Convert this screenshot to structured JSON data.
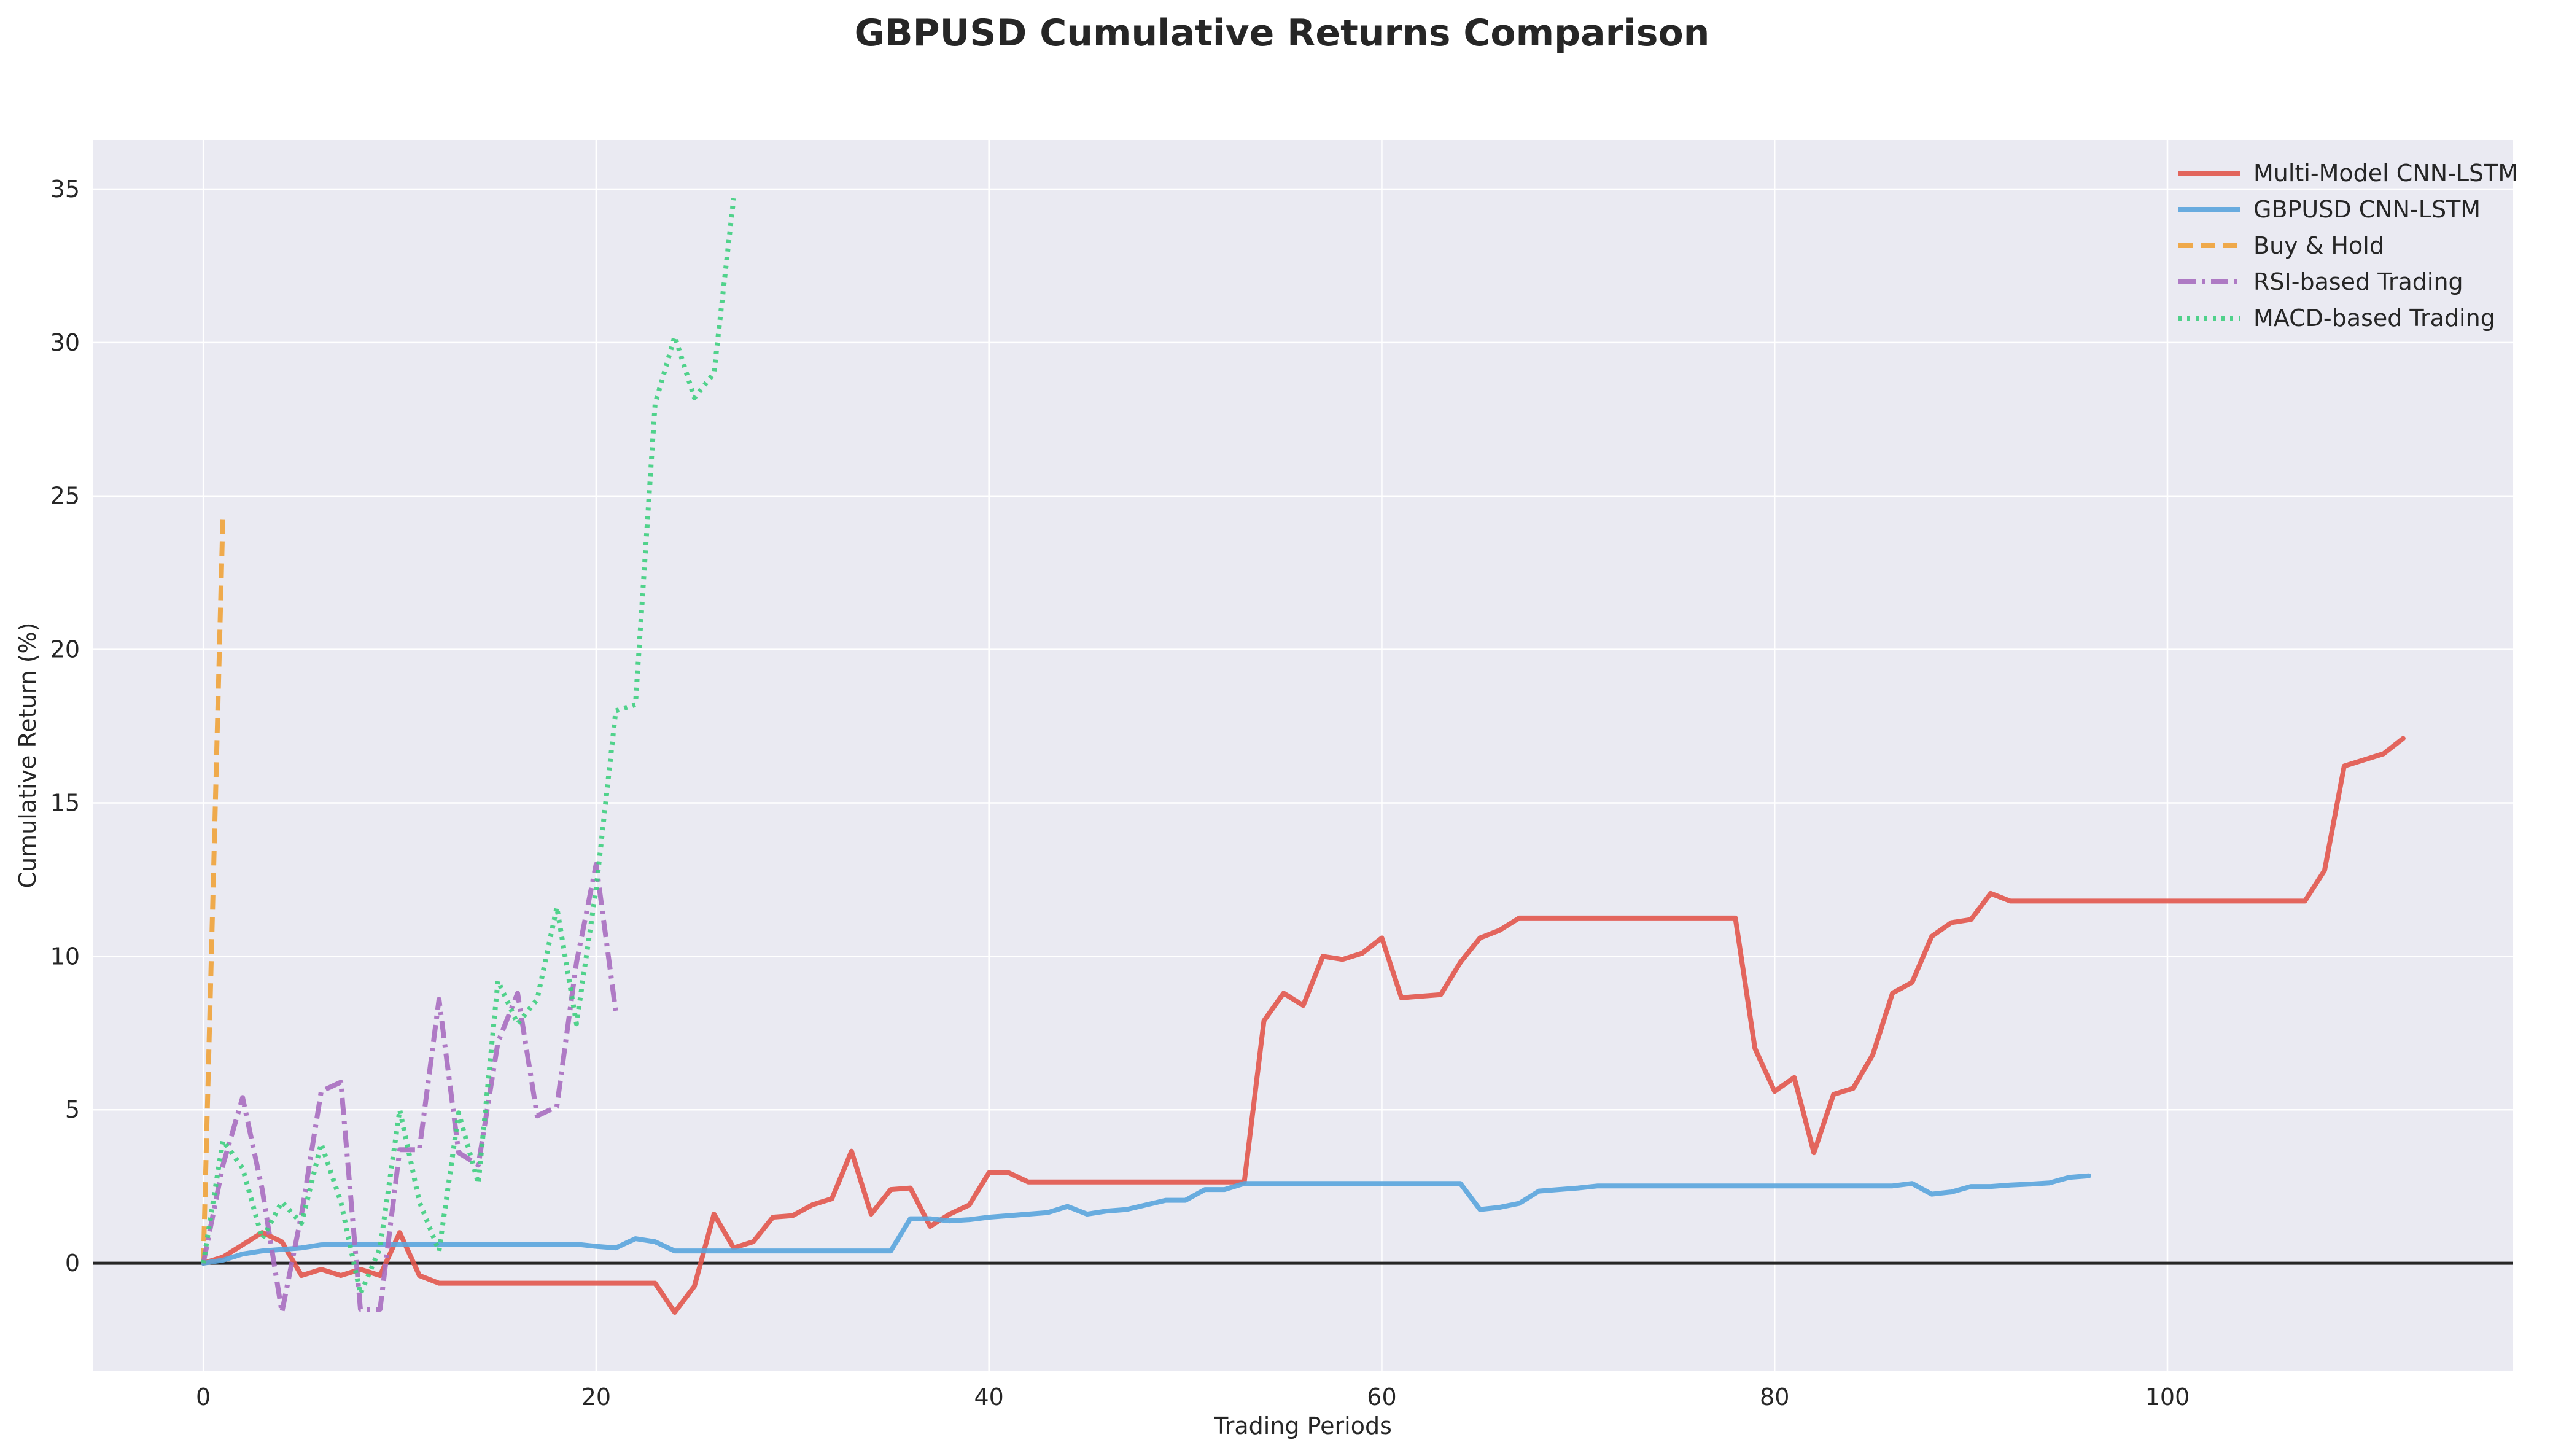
{
  "chart_data": {
    "type": "line",
    "title": "GBPUSD Cumulative Returns Comparison",
    "xlabel": "Trading Periods",
    "ylabel": "Cumulative Return (%)",
    "xlim": [
      -5.6,
      117.6
    ],
    "ylim": [
      -3.5,
      36.6
    ],
    "xticks": [
      0,
      20,
      40,
      60,
      80,
      100
    ],
    "yticks": [
      0,
      5,
      10,
      15,
      20,
      25,
      30,
      35
    ],
    "grid": true,
    "legend_position": "top-right",
    "reference_line_y": 0,
    "series": [
      {
        "name": "Multi-Model CNN-LSTM",
        "color": "#e2574c",
        "style": "solid",
        "x": [
          0,
          1,
          2,
          3,
          4,
          5,
          6,
          7,
          8,
          9,
          10,
          11,
          12,
          13,
          14,
          15,
          16,
          17,
          18,
          19,
          20,
          21,
          22,
          23,
          24,
          25,
          26,
          27,
          28,
          29,
          30,
          31,
          32,
          33,
          34,
          35,
          36,
          37,
          38,
          39,
          40,
          41,
          42,
          43,
          44,
          45,
          46,
          47,
          48,
          49,
          50,
          51,
          52,
          53,
          54,
          55,
          56,
          57,
          58,
          59,
          60,
          61,
          62,
          63,
          64,
          65,
          66,
          67,
          68,
          69,
          70,
          71,
          72,
          73,
          74,
          75,
          76,
          77,
          78,
          79,
          80,
          81,
          82,
          83,
          84,
          85,
          86,
          87,
          88,
          89,
          90,
          91,
          92,
          93,
          94,
          95,
          96,
          97,
          98,
          99,
          100,
          101,
          102,
          103,
          104,
          105,
          106,
          107,
          108,
          109,
          110,
          111,
          112
        ],
        "y": [
          0,
          0.2,
          0.6,
          1.0,
          0.7,
          -0.4,
          -0.2,
          -0.4,
          -0.2,
          -0.4,
          1.0,
          -0.4,
          -0.65,
          -0.65,
          -0.65,
          -0.65,
          -0.65,
          -0.65,
          -0.65,
          -0.65,
          -0.65,
          -0.65,
          -0.65,
          -0.65,
          -1.6,
          -0.75,
          1.6,
          0.5,
          0.7,
          1.5,
          1.55,
          1.9,
          2.1,
          3.65,
          1.6,
          2.4,
          2.45,
          1.2,
          1.6,
          1.9,
          2.95,
          2.95,
          2.65,
          2.65,
          2.65,
          2.65,
          2.65,
          2.65,
          2.65,
          2.65,
          2.65,
          2.65,
          2.65,
          2.65,
          7.9,
          8.8,
          8.4,
          10.0,
          9.9,
          10.1,
          10.6,
          8.65,
          8.7,
          8.75,
          9.8,
          10.6,
          10.85,
          11.25,
          11.25,
          11.25,
          11.25,
          11.25,
          11.25,
          11.25,
          11.25,
          11.25,
          11.25,
          11.25,
          11.25,
          7.0,
          5.6,
          6.05,
          3.6,
          5.5,
          5.7,
          6.8,
          8.8,
          9.15,
          10.65,
          11.1,
          11.2,
          12.05,
          11.8,
          11.8,
          11.8,
          11.8,
          11.8,
          11.8,
          11.8,
          11.8,
          11.8,
          11.8,
          11.8,
          11.8,
          11.8,
          11.8,
          11.8,
          11.8,
          12.8,
          16.2,
          16.4,
          16.6,
          17.1
        ]
      },
      {
        "name": "GBPUSD CNN-LSTM",
        "color": "#5aa5dd",
        "style": "solid",
        "x": [
          0,
          1,
          2,
          3,
          4,
          5,
          6,
          7,
          8,
          9,
          10,
          11,
          12,
          13,
          14,
          15,
          16,
          17,
          18,
          19,
          20,
          21,
          22,
          23,
          24,
          25,
          26,
          27,
          28,
          29,
          30,
          31,
          32,
          33,
          34,
          35,
          36,
          37,
          38,
          39,
          40,
          41,
          42,
          43,
          44,
          45,
          46,
          47,
          48,
          49,
          50,
          51,
          52,
          53,
          54,
          55,
          56,
          57,
          58,
          59,
          60,
          61,
          62,
          63,
          64,
          65,
          66,
          67,
          68,
          69,
          70,
          71,
          72,
          73,
          74,
          75,
          76,
          77,
          78,
          79,
          80,
          81,
          82,
          83,
          84,
          85,
          86,
          87,
          88,
          89,
          90,
          91,
          92,
          93,
          94,
          95,
          96
        ],
        "y": [
          0,
          0.1,
          0.3,
          0.4,
          0.45,
          0.5,
          0.6,
          0.62,
          0.62,
          0.62,
          0.62,
          0.62,
          0.62,
          0.62,
          0.62,
          0.62,
          0.62,
          0.62,
          0.62,
          0.62,
          0.55,
          0.5,
          0.8,
          0.7,
          0.4,
          0.4,
          0.4,
          0.4,
          0.4,
          0.4,
          0.4,
          0.4,
          0.4,
          0.4,
          0.4,
          0.4,
          1.45,
          1.45,
          1.38,
          1.42,
          1.5,
          1.55,
          1.6,
          1.65,
          1.85,
          1.6,
          1.7,
          1.75,
          1.9,
          2.05,
          2.05,
          2.4,
          2.4,
          2.6,
          2.6,
          2.6,
          2.6,
          2.6,
          2.6,
          2.6,
          2.6,
          2.6,
          2.6,
          2.6,
          2.6,
          1.75,
          1.82,
          1.95,
          2.35,
          2.4,
          2.45,
          2.52,
          2.52,
          2.52,
          2.52,
          2.52,
          2.52,
          2.52,
          2.52,
          2.52,
          2.52,
          2.52,
          2.52,
          2.52,
          2.52,
          2.52,
          2.52,
          2.6,
          2.25,
          2.32,
          2.5,
          2.5,
          2.55,
          2.58,
          2.62,
          2.8,
          2.85
        ]
      },
      {
        "name": "Buy & Hold",
        "color": "#f0a33a",
        "style": "dashed",
        "x": [
          0,
          1
        ],
        "y": [
          0,
          24.4
        ]
      },
      {
        "name": "RSI-based Trading",
        "color": "#a86ec0",
        "style": "dashdot",
        "x": [
          0,
          1,
          2,
          3,
          4,
          5,
          6,
          7,
          8,
          9,
          10,
          11,
          12,
          13,
          14,
          15,
          16,
          17,
          18,
          19,
          20,
          21
        ],
        "y": [
          0,
          3.2,
          5.4,
          2.4,
          -1.6,
          1.6,
          5.6,
          5.9,
          -1.5,
          -1.5,
          3.7,
          3.7,
          8.6,
          3.6,
          3.2,
          7.2,
          8.8,
          4.8,
          5.1,
          9.8,
          13.0,
          8.2
        ]
      },
      {
        "name": "MACD-based Trading",
        "color": "#3fcf7f",
        "style": "dotted",
        "x": [
          0,
          1,
          2,
          3,
          4,
          5,
          6,
          7,
          8,
          9,
          10,
          11,
          12,
          13,
          14,
          15,
          16,
          17,
          18,
          19,
          20,
          21,
          22,
          23,
          24,
          25,
          26,
          27
        ],
        "y": [
          0,
          4.0,
          3.1,
          0.8,
          2.0,
          1.3,
          3.9,
          2.0,
          -1.0,
          0.5,
          5.0,
          2.0,
          0.4,
          4.9,
          2.6,
          9.2,
          7.8,
          8.6,
          11.6,
          7.8,
          12.2,
          18.0,
          18.2,
          28.0,
          30.2,
          28.2,
          29.0,
          34.7
        ]
      }
    ]
  }
}
